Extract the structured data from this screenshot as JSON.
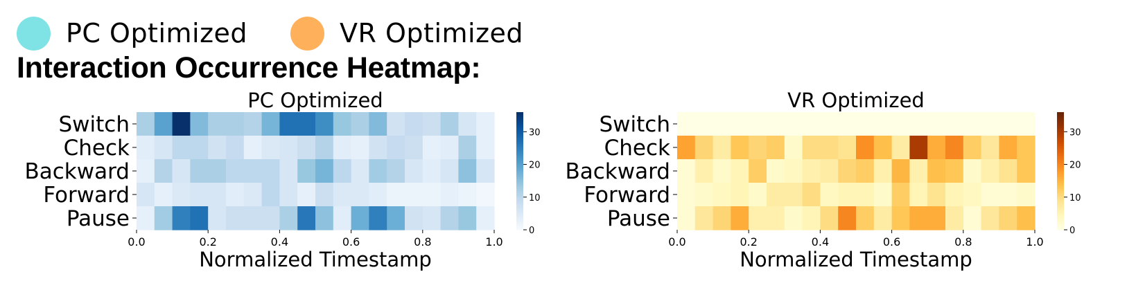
{
  "legend": {
    "items": [
      {
        "label": "PC Optimized",
        "color": "#7fe3e6"
      },
      {
        "label": "VR Optimized",
        "color": "#ffb05a"
      }
    ]
  },
  "headline": "Interaction Occurrence Heatmap:",
  "chart_data": [
    {
      "type": "heatmap",
      "title": "PC Optimized",
      "colormap": "Blues",
      "xlabel": "Normalized Timestamp",
      "ylabel": "",
      "xlim": [
        0,
        1
      ],
      "x_ticks": [
        "0.0",
        "0.2",
        "0.4",
        "0.6",
        "0.8",
        "1.0"
      ],
      "rows": [
        "Switch",
        "Check",
        "Backward",
        "Forward",
        "Pause"
      ],
      "vmin": 0,
      "vmax": 36,
      "colorbar_ticks": [
        "0",
        "10",
        "20",
        "30"
      ],
      "values": [
        [
          12,
          20,
          36,
          16,
          12,
          12,
          11,
          17,
          27,
          27,
          23,
          14,
          12,
          16,
          7,
          9,
          8,
          12,
          6,
          3
        ],
        [
          4,
          6,
          10,
          10,
          7,
          9,
          3,
          5,
          6,
          8,
          11,
          4,
          3,
          7,
          9,
          8,
          3,
          4,
          12,
          3
        ],
        [
          3,
          11,
          6,
          12,
          12,
          10,
          10,
          10,
          6,
          14,
          17,
          10,
          5,
          13,
          11,
          6,
          4,
          6,
          15,
          6
        ],
        [
          6,
          3,
          5,
          6,
          6,
          4,
          5,
          10,
          6,
          3,
          8,
          5,
          5,
          4,
          2,
          2,
          2,
          3,
          2,
          1
        ],
        [
          3,
          13,
          25,
          27,
          6,
          8,
          8,
          8,
          12,
          26,
          15,
          4,
          18,
          25,
          18,
          7,
          6,
          11,
          14,
          3
        ]
      ]
    },
    {
      "type": "heatmap",
      "title": "VR Optimized",
      "colormap": "YlOrBr",
      "xlabel": "Normalized Timestamp",
      "ylabel": "",
      "xlim": [
        0,
        1
      ],
      "x_ticks": [
        "0.0",
        "0.2",
        "0.4",
        "0.6",
        "0.8",
        "1.0"
      ],
      "rows": [
        "Switch",
        "Check",
        "Backward",
        "Forward",
        "Pause"
      ],
      "vmin": 0,
      "vmax": 36,
      "colorbar_ticks": [
        "0",
        "10",
        "20",
        "30"
      ],
      "values": [
        [
          0,
          0,
          0,
          0,
          0,
          0,
          0,
          0,
          0,
          0,
          0,
          0,
          0,
          0,
          0,
          0,
          0,
          0,
          0,
          0
        ],
        [
          17,
          11,
          7,
          13,
          11,
          12,
          3,
          10,
          10,
          9,
          19,
          14,
          7,
          30,
          16,
          20,
          12,
          8,
          16,
          13
        ],
        [
          2,
          6,
          3,
          5,
          12,
          3,
          4,
          6,
          7,
          11,
          12,
          6,
          15,
          6,
          14,
          13,
          3,
          6,
          9,
          13
        ],
        [
          2,
          3,
          4,
          5,
          3,
          7,
          7,
          10,
          4,
          5,
          5,
          3,
          12,
          5,
          9,
          5,
          4,
          2,
          2,
          3
        ],
        [
          2,
          8,
          11,
          16,
          6,
          6,
          3,
          5,
          10,
          20,
          12,
          7,
          13,
          16,
          16,
          7,
          2,
          8,
          11,
          14
        ]
      ]
    }
  ]
}
